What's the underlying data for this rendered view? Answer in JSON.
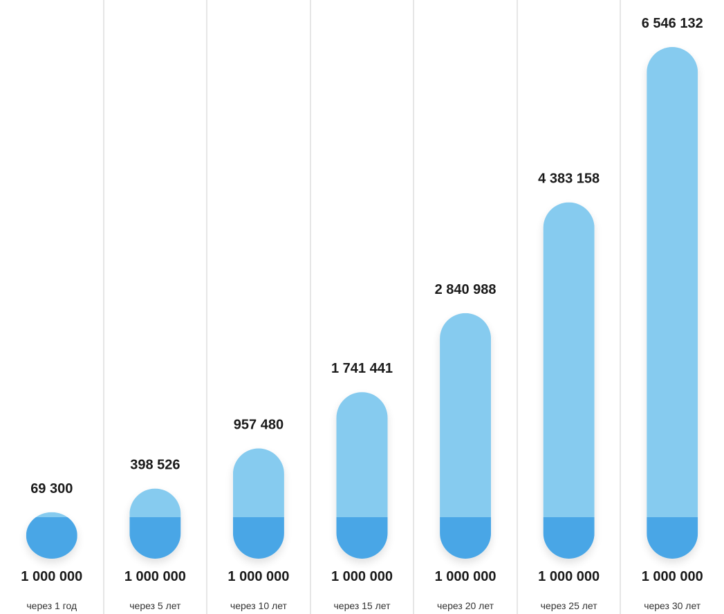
{
  "chart_data": {
    "type": "bar",
    "categories": [
      "через 1 год",
      "через 5 лет",
      "через 10 лет",
      "через 15 лет",
      "через 20 лет",
      "через 25 лет",
      "через 30 лет"
    ],
    "series": [
      {
        "values": [
          1000000,
          1000000,
          1000000,
          1000000,
          1000000,
          1000000,
          1000000
        ]
      },
      {
        "values": [
          69300,
          398526,
          957480,
          1741441,
          2840988,
          4383158,
          6546132
        ]
      }
    ],
    "value_labels": [
      "69 300",
      "398 526",
      "957 480",
      "1 741 441",
      "2 840 988",
      "4 383 158",
      "6 546 132"
    ],
    "base_labels": [
      "1 000 000",
      "1 000 000",
      "1 000 000",
      "1 000 000",
      "1 000 000",
      "1 000 000",
      "1 000 000"
    ],
    "stacked": true,
    "grid": false,
    "colors": {
      "base": "#4aa6e6",
      "growth": "#86cbef",
      "divider": "#e6e6e6",
      "text": "#1a1a1a"
    }
  }
}
